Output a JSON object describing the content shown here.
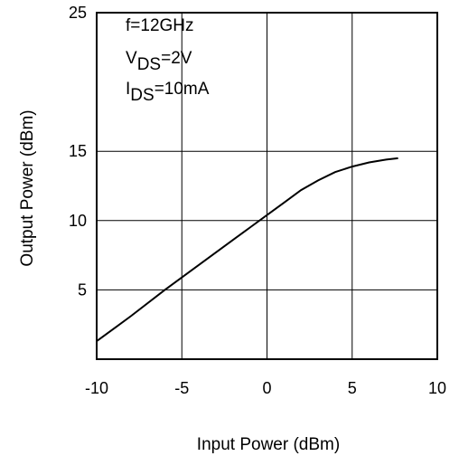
{
  "chart_data": {
    "type": "line",
    "xlabel": "Input Power (dBm)",
    "ylabel": "Output Power (dBm)",
    "xlim": [
      -10,
      10
    ],
    "ylim": [
      0,
      25
    ],
    "xticks": [
      -10,
      -5,
      0,
      5,
      10
    ],
    "yticks": [
      5,
      10,
      15,
      25
    ],
    "xtick_labels": [
      "-10",
      "-5",
      "0",
      "5",
      "10"
    ],
    "ytick_labels": [
      "5",
      "10",
      "15",
      "25"
    ],
    "grid": true,
    "legend": "none",
    "annotations": [
      {
        "main": "f=12GHz",
        "sub": "",
        "suffix": ""
      },
      {
        "main": "V",
        "sub": "DS",
        "suffix": "=2V"
      },
      {
        "main": "I",
        "sub": "DS",
        "suffix": "=10mA"
      }
    ],
    "series": [
      {
        "x": [
          -10,
          -8,
          -6,
          -4,
          -2,
          -1,
          0,
          1,
          2,
          3,
          4,
          5,
          6,
          7,
          7.7
        ],
        "y": [
          1.3,
          3.1,
          5.0,
          6.8,
          8.6,
          9.5,
          10.4,
          11.3,
          12.2,
          12.9,
          13.5,
          13.9,
          14.2,
          14.4,
          14.5
        ]
      }
    ]
  }
}
